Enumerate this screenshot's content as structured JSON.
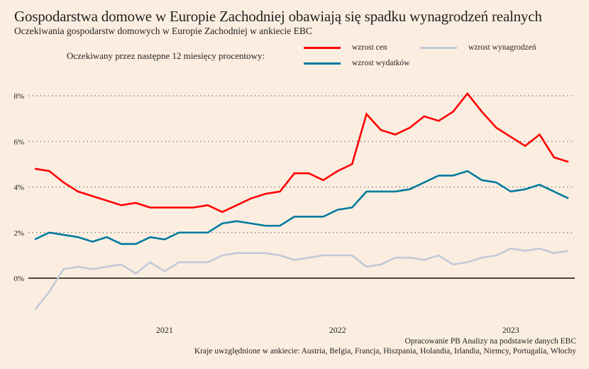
{
  "title": "Gospodarstwa domowe w Europie Zachodniej obawiają się spadku wynagrodzeń realnych",
  "subtitle": "Oczekiwania gospodarstw domowych w Europie Zachodniej w ankiecie EBC",
  "legend_caption": "Oczekiwany przez następne 12 miesięcy procentowy:",
  "footer": {
    "source": "Opracowanie PB Analizy na podstawie danych EBC",
    "note": "Kraje uwzględnione w ankiecie: Austria, Belgia, Francja, Hiszpania, Holandia, Irlandia, Niemcy, Portugalia, Włochy"
  },
  "chart_data": {
    "type": "line",
    "title": "Gospodarstwa domowe w Europie Zachodniej obawiają się spadku wynagrodzeń realnych",
    "x_start": "2020-04",
    "x_end": "2023-05",
    "x_step": "month",
    "xticks": [
      {
        "label": "2021",
        "index": 9
      },
      {
        "label": "2022",
        "index": 21
      },
      {
        "label": "2023",
        "index": 33
      }
    ],
    "yticks": [
      {
        "label": "0%",
        "value": 0
      },
      {
        "label": "2%",
        "value": 2
      },
      {
        "label": "4%",
        "value": 4
      },
      {
        "label": "6%",
        "value": 6
      },
      {
        "label": "8%",
        "value": 8
      }
    ],
    "ylim": [
      -1.7,
      8.8
    ],
    "grid": true,
    "legend_placement": "top",
    "series": [
      {
        "name": "wzrost cen",
        "color": "#ff0000",
        "values": [
          4.8,
          4.7,
          4.2,
          3.8,
          3.6,
          3.4,
          3.2,
          3.3,
          3.1,
          3.1,
          3.1,
          3.1,
          3.2,
          2.9,
          3.2,
          3.5,
          3.7,
          3.8,
          4.6,
          4.6,
          4.3,
          4.7,
          5.0,
          7.2,
          6.5,
          6.3,
          6.6,
          7.1,
          6.9,
          7.3,
          8.1,
          7.3,
          6.6,
          6.2,
          5.8,
          6.3,
          5.3,
          5.1
        ]
      },
      {
        "name": "wzrost wynagrodzeń",
        "color": "#c3c9d8",
        "values": [
          -1.4,
          -0.6,
          0.4,
          0.5,
          0.4,
          0.5,
          0.6,
          0.2,
          0.7,
          0.3,
          0.7,
          0.7,
          0.7,
          1.0,
          1.1,
          1.1,
          1.1,
          1.0,
          0.8,
          0.9,
          1.0,
          1.0,
          1.0,
          0.5,
          0.6,
          0.9,
          0.9,
          0.8,
          1.0,
          0.6,
          0.7,
          0.9,
          1.0,
          1.3,
          1.2,
          1.3,
          1.1,
          1.2
        ]
      },
      {
        "name": "wzrost wydatków",
        "color": "#007a9e",
        "values": [
          1.7,
          2.0,
          1.9,
          1.8,
          1.6,
          1.8,
          1.5,
          1.5,
          1.8,
          1.7,
          2.0,
          2.0,
          2.0,
          2.4,
          2.5,
          2.4,
          2.3,
          2.3,
          2.7,
          2.7,
          2.7,
          3.0,
          3.1,
          3.8,
          3.8,
          3.8,
          3.9,
          4.2,
          4.5,
          4.5,
          4.7,
          4.3,
          4.2,
          3.8,
          3.9,
          4.1,
          3.8,
          3.5
        ]
      }
    ]
  }
}
